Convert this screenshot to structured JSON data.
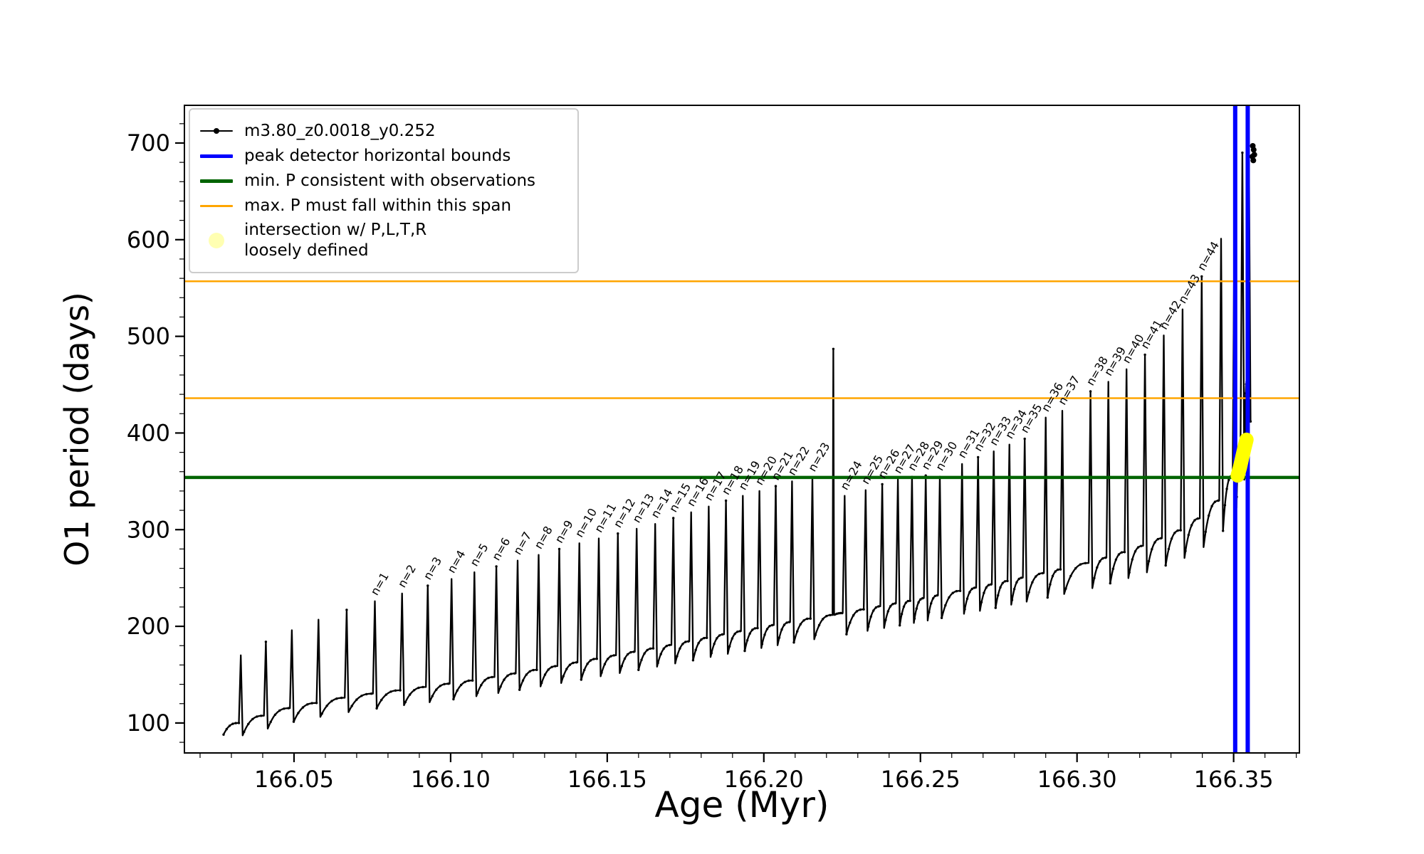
{
  "legend": {
    "items": [
      {
        "label": "m3.80_z0.0018_y0.252",
        "type": "line-dot",
        "color": "#000000",
        "lw": 2,
        "icon": "series-marker-icon"
      },
      {
        "label": "peak detector horizontal bounds",
        "type": "line",
        "color": "#0000FF",
        "lw": 5,
        "icon": "peak-bounds-line-icon"
      },
      {
        "label": "min. P consistent with observations",
        "type": "line",
        "color": "#006400",
        "lw": 5,
        "icon": "min-p-line-icon"
      },
      {
        "label": "max. P must fall within this span",
        "type": "line",
        "color": "#FFA500",
        "lw": 3,
        "icon": "max-p-line-icon"
      },
      {
        "label": "intersection w/ P,L,T,R\nloosely defined",
        "type": "dot",
        "color": "#FFFF00",
        "icon": "intersection-dot-icon"
      }
    ]
  },
  "chart_data": {
    "type": "line",
    "title": "",
    "xlabel": "Age (Myr)",
    "ylabel": "O1 period (days)",
    "series_name": "m3.80_z0.0018_y0.252",
    "series_color": "#000000",
    "xlim": [
      166.015,
      166.371
    ],
    "ylim": [
      69,
      739
    ],
    "xticks": {
      "values": [
        166.05,
        166.1,
        166.15,
        166.2,
        166.25,
        166.3,
        166.35
      ],
      "labels": [
        "166.05",
        "166.10",
        "166.15",
        "166.20",
        "166.25",
        "166.30",
        "166.35"
      ]
    },
    "yticks": {
      "values": [
        100,
        200,
        300,
        400,
        500,
        600,
        700
      ],
      "labels": [
        "100",
        "200",
        "300",
        "400",
        "500",
        "600",
        "700"
      ]
    },
    "xminor_step": 0.01,
    "yminor_step": 20,
    "hlines": [
      {
        "y": 436,
        "color": "#FFA500",
        "lw": 2.5,
        "name": "max-p-span-lower-line"
      },
      {
        "y": 557,
        "color": "#FFA500",
        "lw": 2.5,
        "name": "max-p-span-upper-line"
      },
      {
        "y": 354,
        "color": "#006400",
        "lw": 4.5,
        "name": "min-p-consistent-line"
      }
    ],
    "vlines": [
      {
        "x": 166.3505,
        "color": "#0000FF",
        "lw": 6,
        "name": "peak-bound-left-line"
      },
      {
        "x": 166.3545,
        "color": "#0000FF",
        "lw": 6,
        "name": "peak-bound-right-line"
      }
    ],
    "curve_start": [
      166.0275,
      88
    ],
    "dip": {
      "offset": 12,
      "slope": 0.08,
      "ref": 90
    },
    "baseline": [
      [
        166.027,
        90
      ],
      [
        166.033,
        100
      ],
      [
        166.05,
        116
      ],
      [
        166.07,
        128
      ],
      [
        166.09,
        136
      ],
      [
        166.11,
        145
      ],
      [
        166.13,
        156
      ],
      [
        166.15,
        168
      ],
      [
        166.17,
        180
      ],
      [
        166.19,
        193
      ],
      [
        166.21,
        205
      ],
      [
        166.23,
        216
      ],
      [
        166.25,
        228
      ],
      [
        166.27,
        241
      ],
      [
        166.29,
        255
      ],
      [
        166.305,
        266
      ],
      [
        166.32,
        281
      ],
      [
        166.333,
        298
      ],
      [
        166.34,
        312
      ],
      [
        166.346,
        330
      ],
      [
        166.35,
        352
      ],
      [
        166.353,
        390
      ],
      [
        166.355,
        460
      ],
      [
        166.356,
        530
      ]
    ],
    "spikes": [
      {
        "x": 166.033,
        "peak": 170
      },
      {
        "x": 166.041,
        "peak": 184
      },
      {
        "x": 166.0493,
        "peak": 196
      },
      {
        "x": 166.0578,
        "peak": 207
      },
      {
        "x": 166.0668,
        "peak": 217
      },
      {
        "x": 166.0758,
        "peak": 226,
        "label": "n=1"
      },
      {
        "x": 166.0845,
        "peak": 234,
        "label": "n=2"
      },
      {
        "x": 166.0927,
        "peak": 242,
        "label": "n=3"
      },
      {
        "x": 166.1003,
        "peak": 249,
        "label": "n=4"
      },
      {
        "x": 166.1076,
        "peak": 256,
        "label": "n=5"
      },
      {
        "x": 166.1146,
        "peak": 262,
        "label": "n=6"
      },
      {
        "x": 166.1214,
        "peak": 268,
        "label": "n=7"
      },
      {
        "x": 166.1281,
        "peak": 274,
        "label": "n=8"
      },
      {
        "x": 166.1347,
        "peak": 280,
        "label": "n=9"
      },
      {
        "x": 166.1411,
        "peak": 286,
        "label": "n=10"
      },
      {
        "x": 166.1473,
        "peak": 291,
        "label": "n=11"
      },
      {
        "x": 166.1534,
        "peak": 296,
        "label": "n=12"
      },
      {
        "x": 166.1594,
        "peak": 301,
        "label": "n=13"
      },
      {
        "x": 166.1653,
        "peak": 306,
        "label": "n=14"
      },
      {
        "x": 166.1711,
        "peak": 312,
        "label": "n=15"
      },
      {
        "x": 166.1768,
        "peak": 318,
        "label": "n=16"
      },
      {
        "x": 166.1824,
        "peak": 324,
        "label": "n=17"
      },
      {
        "x": 166.1879,
        "peak": 330,
        "label": "n=18"
      },
      {
        "x": 166.1933,
        "peak": 335,
        "label": "n=19"
      },
      {
        "x": 166.1986,
        "peak": 340,
        "label": "n=20"
      },
      {
        "x": 166.2038,
        "peak": 345,
        "label": "n=21"
      },
      {
        "x": 166.209,
        "peak": 350,
        "label": "n=22"
      },
      {
        "x": 166.2155,
        "peak": 354,
        "label": "n=23"
      },
      {
        "x": 166.2222,
        "peak": 487,
        "thin": true
      },
      {
        "x": 166.2258,
        "peak": 335,
        "label": "n=24"
      },
      {
        "x": 166.2325,
        "peak": 341,
        "label": "n=25"
      },
      {
        "x": 166.2378,
        "peak": 347,
        "label": "n=26"
      },
      {
        "x": 166.2428,
        "peak": 352,
        "label": "n=27"
      },
      {
        "x": 166.2473,
        "peak": 355,
        "label": "n=28"
      },
      {
        "x": 166.2517,
        "peak": 356,
        "label": "n=29"
      },
      {
        "x": 166.2562,
        "peak": 355,
        "label": "n=30"
      },
      {
        "x": 166.2633,
        "peak": 368,
        "label": "n=31"
      },
      {
        "x": 166.2684,
        "peak": 375,
        "label": "n=32"
      },
      {
        "x": 166.2734,
        "peak": 381,
        "label": "n=33"
      },
      {
        "x": 166.2784,
        "peak": 388,
        "label": "n=34"
      },
      {
        "x": 166.2833,
        "peak": 394,
        "label": "n=35"
      },
      {
        "x": 166.29,
        "peak": 416,
        "label": "n=36"
      },
      {
        "x": 166.2953,
        "peak": 423,
        "label": "n=37"
      },
      {
        "x": 166.3043,
        "peak": 443,
        "label": "n=38"
      },
      {
        "x": 166.31,
        "peak": 453,
        "label": "n=39"
      },
      {
        "x": 166.3158,
        "peak": 466,
        "label": "n=40"
      },
      {
        "x": 166.3217,
        "peak": 481,
        "label": "n=41"
      },
      {
        "x": 166.3277,
        "peak": 501,
        "label": "n=42"
      },
      {
        "x": 166.3337,
        "peak": 528,
        "label": "n=43"
      },
      {
        "x": 166.3398,
        "peak": 562,
        "label": "n=44"
      },
      {
        "x": 166.346,
        "peak": 601
      },
      {
        "x": 166.3503,
        "peak": 641
      },
      {
        "x": 166.3528,
        "peak": 690
      },
      {
        "x": 166.3548,
        "peak": 736
      }
    ],
    "intersection_blob": {
      "color": "#FFFF00",
      "points": [
        [
          166.3513,
          356
        ],
        [
          166.352,
          364
        ],
        [
          166.3527,
          374
        ],
        [
          166.3534,
          384
        ],
        [
          166.3541,
          393
        ]
      ]
    },
    "end_scatter": [
      [
        166.356,
        686
      ],
      [
        166.3564,
        693
      ],
      [
        166.3561,
        697
      ],
      [
        166.3566,
        688
      ],
      [
        166.3563,
        682
      ]
    ]
  }
}
